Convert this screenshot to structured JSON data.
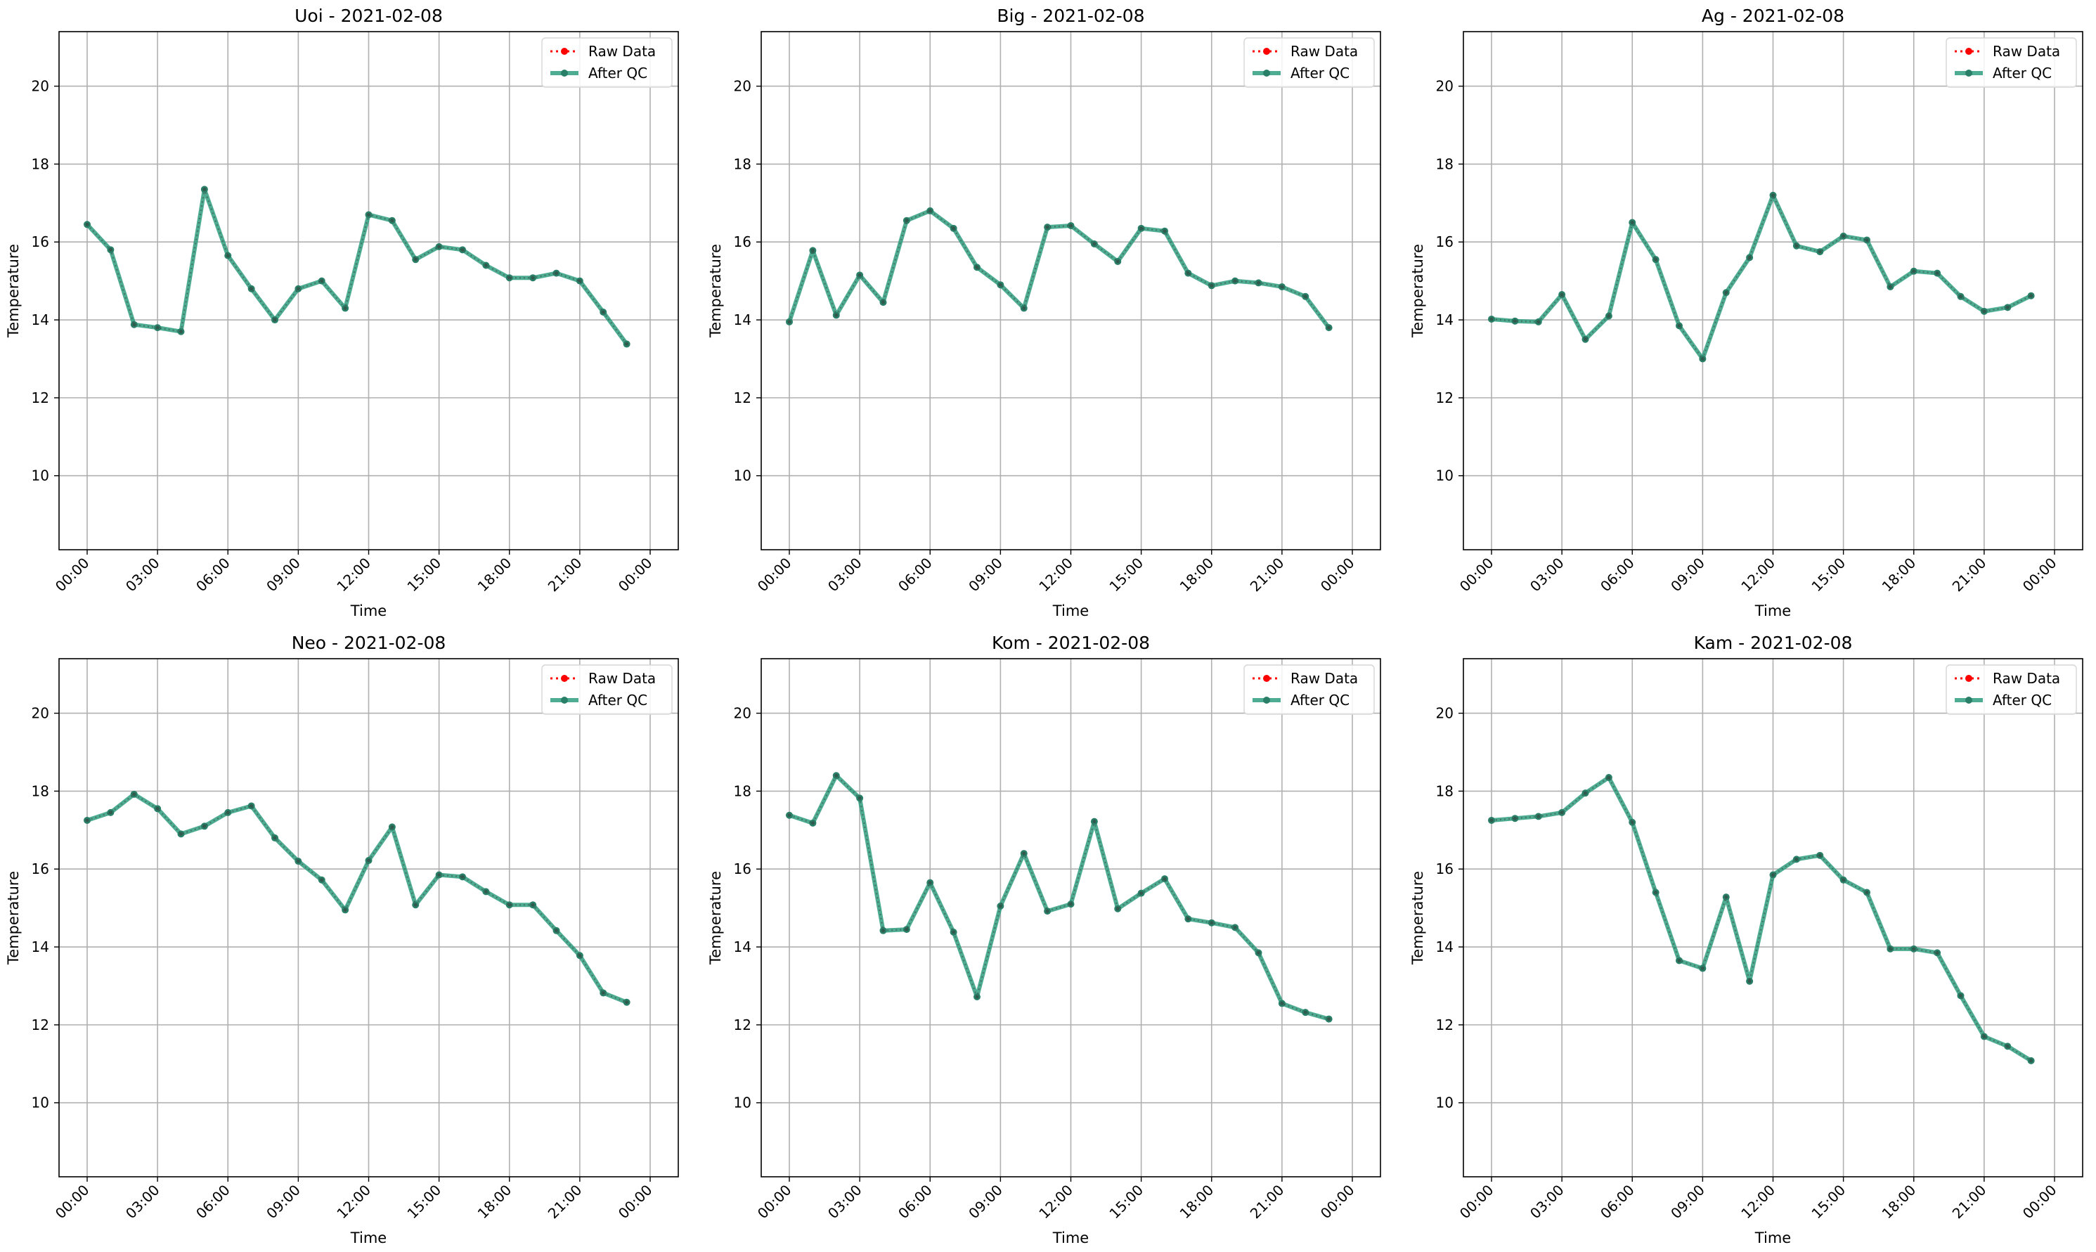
{
  "chart_data": [
    {
      "type": "line",
      "title": "Uoi - 2021-02-08",
      "xlabel": "Time",
      "ylabel": "Temperature",
      "xticks": [
        "00:00",
        "03:00",
        "06:00",
        "09:00",
        "12:00",
        "15:00",
        "18:00",
        "21:00",
        "00:00"
      ],
      "yticks": [
        10,
        12,
        14,
        16,
        18,
        20
      ],
      "ylim": [
        8.1,
        21.4
      ],
      "x_unit": "hour",
      "x": [
        0,
        1,
        2,
        3,
        4,
        5,
        6,
        7,
        8,
        9,
        10,
        11,
        12,
        13,
        14,
        15,
        16,
        17,
        18,
        19,
        20,
        21,
        22,
        23
      ],
      "grid": true,
      "legend_position": "top-right",
      "series": [
        {
          "name": "Raw Data",
          "color": "#ff0000",
          "style": "dotted",
          "values": [
            16.45,
            15.8,
            13.88,
            13.8,
            13.7,
            17.35,
            15.65,
            14.8,
            14.0,
            14.8,
            15.0,
            14.3,
            16.7,
            16.55,
            15.55,
            15.88,
            15.8,
            15.4,
            15.08,
            15.08,
            15.2,
            15.0,
            14.2,
            13.38
          ]
        },
        {
          "name": "After QC",
          "color": "#2e9e7e",
          "style": "solid",
          "values": [
            16.45,
            15.8,
            13.88,
            13.8,
            13.7,
            17.35,
            15.65,
            14.8,
            14.0,
            14.8,
            15.0,
            14.3,
            16.7,
            16.55,
            15.55,
            15.88,
            15.8,
            15.4,
            15.08,
            15.08,
            15.2,
            15.0,
            14.2,
            13.38
          ]
        }
      ]
    },
    {
      "type": "line",
      "title": "Big - 2021-02-08",
      "xlabel": "Time",
      "ylabel": "Temperature",
      "xticks": [
        "00:00",
        "03:00",
        "06:00",
        "09:00",
        "12:00",
        "15:00",
        "18:00",
        "21:00",
        "00:00"
      ],
      "yticks": [
        10,
        12,
        14,
        16,
        18,
        20
      ],
      "ylim": [
        8.1,
        21.4
      ],
      "x_unit": "hour",
      "x": [
        0,
        1,
        2,
        3,
        4,
        5,
        6,
        7,
        8,
        9,
        10,
        11,
        12,
        13,
        14,
        15,
        16,
        17,
        18,
        19,
        20,
        21,
        22,
        23
      ],
      "grid": true,
      "legend_position": "top-right",
      "series": [
        {
          "name": "Raw Data",
          "color": "#ff0000",
          "style": "dotted",
          "values": [
            13.95,
            15.78,
            14.12,
            15.15,
            14.45,
            16.55,
            16.8,
            16.35,
            15.35,
            14.9,
            14.3,
            16.38,
            16.42,
            15.95,
            15.5,
            16.35,
            16.28,
            15.2,
            14.88,
            15.0,
            14.95,
            14.85,
            14.6,
            13.8
          ]
        },
        {
          "name": "After QC",
          "color": "#2e9e7e",
          "style": "solid",
          "values": [
            13.95,
            15.78,
            14.12,
            15.15,
            14.45,
            16.55,
            16.8,
            16.35,
            15.35,
            14.9,
            14.3,
            16.38,
            16.42,
            15.95,
            15.5,
            16.35,
            16.28,
            15.2,
            14.88,
            15.0,
            14.95,
            14.85,
            14.6,
            13.8
          ]
        }
      ]
    },
    {
      "type": "line",
      "title": "Ag - 2021-02-08",
      "xlabel": "Time",
      "ylabel": "Temperature",
      "xticks": [
        "00:00",
        "03:00",
        "06:00",
        "09:00",
        "12:00",
        "15:00",
        "18:00",
        "21:00",
        "00:00"
      ],
      "yticks": [
        10,
        12,
        14,
        16,
        18,
        20
      ],
      "ylim": [
        8.1,
        21.4
      ],
      "x_unit": "hour",
      "x": [
        0,
        1,
        2,
        3,
        4,
        5,
        6,
        7,
        8,
        9,
        10,
        11,
        12,
        13,
        14,
        15,
        16,
        17,
        18,
        19,
        20,
        21,
        22,
        23
      ],
      "grid": true,
      "legend_position": "top-right",
      "series": [
        {
          "name": "Raw Data",
          "color": "#ff0000",
          "style": "dotted",
          "values": [
            14.02,
            13.97,
            13.95,
            14.65,
            13.5,
            14.1,
            16.5,
            15.55,
            13.85,
            13.0,
            14.7,
            15.6,
            17.2,
            15.9,
            15.75,
            16.15,
            16.05,
            14.85,
            15.25,
            15.2,
            14.6,
            14.22,
            14.32,
            14.62
          ]
        },
        {
          "name": "After QC",
          "color": "#2e9e7e",
          "style": "solid",
          "values": [
            14.02,
            13.97,
            13.95,
            14.65,
            13.5,
            14.1,
            16.5,
            15.55,
            13.85,
            13.0,
            14.7,
            15.6,
            17.2,
            15.9,
            15.75,
            16.15,
            16.05,
            14.85,
            15.25,
            15.2,
            14.6,
            14.22,
            14.32,
            14.62
          ]
        }
      ]
    },
    {
      "type": "line",
      "title": "Neo - 2021-02-08",
      "xlabel": "Time",
      "ylabel": "Temperature",
      "xticks": [
        "00:00",
        "03:00",
        "06:00",
        "09:00",
        "12:00",
        "15:00",
        "18:00",
        "21:00",
        "00:00"
      ],
      "yticks": [
        10,
        12,
        14,
        16,
        18,
        20
      ],
      "ylim": [
        8.1,
        21.4
      ],
      "x_unit": "hour",
      "x": [
        0,
        1,
        2,
        3,
        4,
        5,
        6,
        7,
        8,
        9,
        10,
        11,
        12,
        13,
        14,
        15,
        16,
        17,
        18,
        19,
        20,
        21,
        22,
        23
      ],
      "grid": true,
      "legend_position": "top-right",
      "series": [
        {
          "name": "Raw Data",
          "color": "#ff0000",
          "style": "dotted",
          "values": [
            17.25,
            17.45,
            17.92,
            17.55,
            16.9,
            17.1,
            17.45,
            17.62,
            16.8,
            16.2,
            15.72,
            14.95,
            16.22,
            17.08,
            15.08,
            15.85,
            15.8,
            15.42,
            15.08,
            15.08,
            14.42,
            13.78,
            12.82,
            12.58
          ]
        },
        {
          "name": "After QC",
          "color": "#2e9e7e",
          "style": "solid",
          "values": [
            17.25,
            17.45,
            17.92,
            17.55,
            16.9,
            17.1,
            17.45,
            17.62,
            16.8,
            16.2,
            15.72,
            14.95,
            16.22,
            17.08,
            15.08,
            15.85,
            15.8,
            15.42,
            15.08,
            15.08,
            14.42,
            13.78,
            12.82,
            12.58
          ]
        }
      ]
    },
    {
      "type": "line",
      "title": "Kom - 2021-02-08",
      "xlabel": "Time",
      "ylabel": "Temperature",
      "xticks": [
        "00:00",
        "03:00",
        "06:00",
        "09:00",
        "12:00",
        "15:00",
        "18:00",
        "21:00",
        "00:00"
      ],
      "yticks": [
        10,
        12,
        14,
        16,
        18,
        20
      ],
      "ylim": [
        8.1,
        21.4
      ],
      "x_unit": "hour",
      "x": [
        0,
        1,
        2,
        3,
        4,
        5,
        6,
        7,
        8,
        9,
        10,
        11,
        12,
        13,
        14,
        15,
        16,
        17,
        18,
        19,
        20,
        21,
        22,
        23
      ],
      "grid": true,
      "legend_position": "top-right",
      "series": [
        {
          "name": "Raw Data",
          "color": "#ff0000",
          "style": "dotted",
          "values": [
            17.38,
            17.18,
            18.4,
            17.82,
            14.42,
            14.45,
            15.65,
            14.38,
            12.72,
            15.05,
            16.4,
            14.92,
            15.1,
            17.22,
            14.98,
            15.38,
            15.75,
            14.72,
            14.62,
            14.5,
            13.85,
            12.55,
            12.32,
            12.15
          ]
        },
        {
          "name": "After QC",
          "color": "#2e9e7e",
          "style": "solid",
          "values": [
            17.38,
            17.18,
            18.4,
            17.82,
            14.42,
            14.45,
            15.65,
            14.38,
            12.72,
            15.05,
            16.4,
            14.92,
            15.1,
            17.22,
            14.98,
            15.38,
            15.75,
            14.72,
            14.62,
            14.5,
            13.85,
            12.55,
            12.32,
            12.15
          ]
        }
      ]
    },
    {
      "type": "line",
      "title": "Kam - 2021-02-08",
      "xlabel": "Time",
      "ylabel": "Temperature",
      "xticks": [
        "00:00",
        "03:00",
        "06:00",
        "09:00",
        "12:00",
        "15:00",
        "18:00",
        "21:00",
        "00:00"
      ],
      "yticks": [
        10,
        12,
        14,
        16,
        18,
        20
      ],
      "ylim": [
        8.1,
        21.4
      ],
      "x_unit": "hour",
      "x": [
        0,
        1,
        2,
        3,
        4,
        5,
        6,
        7,
        8,
        9,
        10,
        11,
        12,
        13,
        14,
        15,
        16,
        17,
        18,
        19,
        20,
        21,
        22,
        23
      ],
      "grid": true,
      "legend_position": "top-right",
      "series": [
        {
          "name": "Raw Data",
          "color": "#ff0000",
          "style": "dotted",
          "values": [
            17.25,
            17.3,
            17.35,
            17.45,
            17.95,
            18.35,
            17.2,
            15.4,
            13.65,
            13.45,
            15.28,
            13.12,
            15.85,
            16.25,
            16.35,
            15.72,
            15.4,
            13.95,
            13.95,
            13.85,
            12.75,
            11.7,
            11.45,
            11.08
          ]
        },
        {
          "name": "After QC",
          "color": "#2e9e7e",
          "style": "solid",
          "values": [
            17.25,
            17.3,
            17.35,
            17.45,
            17.95,
            18.35,
            17.2,
            15.4,
            13.65,
            13.45,
            15.28,
            13.12,
            15.85,
            16.25,
            16.35,
            15.72,
            15.4,
            13.95,
            13.95,
            13.85,
            12.75,
            11.7,
            11.45,
            11.08
          ]
        }
      ]
    }
  ]
}
